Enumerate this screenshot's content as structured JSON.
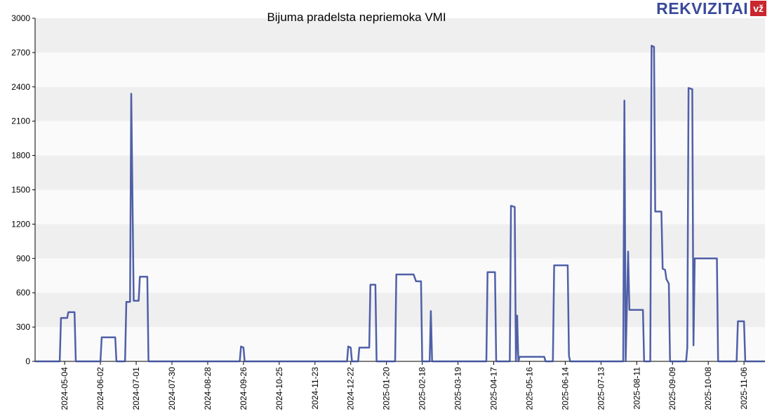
{
  "logo": {
    "text": "REKVIZITAI",
    "badge": "vž"
  },
  "chart_data": {
    "type": "line",
    "title": "Bijuma pradelsta nepriemoka VMI",
    "xlabel": "",
    "ylabel": "",
    "ylim": [
      0,
      3000
    ],
    "yticks": [
      0,
      300,
      600,
      900,
      1200,
      1500,
      1800,
      2100,
      2400,
      2700,
      3000
    ],
    "xlim": [
      "2024-04-10",
      "2025-11-23"
    ],
    "xticks": [
      "2024-05-04",
      "2024-06-02",
      "2024-07-01",
      "2024-07-30",
      "2024-08-28",
      "2024-09-26",
      "2024-10-25",
      "2024-11-23",
      "2024-12-22",
      "2025-01-20",
      "2025-02-18",
      "2025-03-19",
      "2025-04-17",
      "2025-05-16",
      "2025-06-14",
      "2025-07-13",
      "2025-08-11",
      "2025-09-09",
      "2025-10-08",
      "2025-11-06"
    ],
    "grid": "horizontal bands",
    "line_color": "#3d4f9f",
    "series": [
      {
        "points": [
          [
            "2024-04-10",
            0
          ],
          [
            "2024-04-30",
            0
          ],
          [
            "2024-05-01",
            380
          ],
          [
            "2024-05-06",
            380
          ],
          [
            "2024-05-07",
            430
          ],
          [
            "2024-05-12",
            430
          ],
          [
            "2024-05-13",
            0
          ],
          [
            "2024-06-02",
            0
          ],
          [
            "2024-06-03",
            210
          ],
          [
            "2024-06-14",
            210
          ],
          [
            "2024-06-15",
            0
          ],
          [
            "2024-06-22",
            0
          ],
          [
            "2024-06-23",
            520
          ],
          [
            "2024-06-26",
            520
          ],
          [
            "2024-06-27",
            2340
          ],
          [
            "2024-06-29",
            530
          ],
          [
            "2024-07-03",
            530
          ],
          [
            "2024-07-04",
            740
          ],
          [
            "2024-07-10",
            740
          ],
          [
            "2024-07-11",
            0
          ],
          [
            "2024-09-23",
            0
          ],
          [
            "2024-09-24",
            130
          ],
          [
            "2024-09-26",
            120
          ],
          [
            "2024-09-27",
            0
          ],
          [
            "2024-12-19",
            0
          ],
          [
            "2024-12-20",
            130
          ],
          [
            "2024-12-22",
            120
          ],
          [
            "2024-12-23",
            0
          ],
          [
            "2024-12-28",
            0
          ],
          [
            "2024-12-29",
            120
          ],
          [
            "2025-01-06",
            120
          ],
          [
            "2025-01-07",
            670
          ],
          [
            "2025-01-11",
            670
          ],
          [
            "2025-01-12",
            0
          ],
          [
            "2025-01-27",
            0
          ],
          [
            "2025-01-28",
            760
          ],
          [
            "2025-02-11",
            760
          ],
          [
            "2025-02-13",
            700
          ],
          [
            "2025-02-17",
            700
          ],
          [
            "2025-02-18",
            0
          ],
          [
            "2025-02-24",
            0
          ],
          [
            "2025-02-25",
            440
          ],
          [
            "2025-02-26",
            0
          ],
          [
            "2025-04-11",
            0
          ],
          [
            "2025-04-12",
            780
          ],
          [
            "2025-04-18",
            780
          ],
          [
            "2025-04-19",
            0
          ],
          [
            "2025-04-30",
            0
          ],
          [
            "2025-05-01",
            1360
          ],
          [
            "2025-05-04",
            1350
          ],
          [
            "2025-05-05",
            0
          ],
          [
            "2025-05-06",
            400
          ],
          [
            "2025-05-07",
            0
          ],
          [
            "2025-05-08",
            40
          ],
          [
            "2025-05-28",
            40
          ],
          [
            "2025-05-29",
            0
          ],
          [
            "2025-06-04",
            0
          ],
          [
            "2025-06-05",
            840
          ],
          [
            "2025-06-16",
            840
          ],
          [
            "2025-06-17",
            50
          ],
          [
            "2025-06-18",
            0
          ],
          [
            "2025-07-31",
            0
          ],
          [
            "2025-08-01",
            2280
          ],
          [
            "2025-08-02",
            0
          ],
          [
            "2025-08-04",
            960
          ],
          [
            "2025-08-05",
            450
          ],
          [
            "2025-08-16",
            450
          ],
          [
            "2025-08-17",
            0
          ],
          [
            "2025-08-22",
            0
          ],
          [
            "2025-08-23",
            2760
          ],
          [
            "2025-08-25",
            2750
          ],
          [
            "2025-08-26",
            1310
          ],
          [
            "2025-08-31",
            1310
          ],
          [
            "2025-09-01",
            810
          ],
          [
            "2025-09-03",
            800
          ],
          [
            "2025-09-04",
            720
          ],
          [
            "2025-09-06",
            680
          ],
          [
            "2025-09-07",
            0
          ],
          [
            "2025-09-20",
            0
          ],
          [
            "2025-09-21",
            120
          ],
          [
            "2025-09-22",
            2390
          ],
          [
            "2025-09-25",
            2380
          ],
          [
            "2025-09-26",
            140
          ],
          [
            "2025-09-27",
            900
          ],
          [
            "2025-10-15",
            900
          ],
          [
            "2025-10-16",
            0
          ],
          [
            "2025-10-31",
            0
          ],
          [
            "2025-11-01",
            350
          ],
          [
            "2025-11-06",
            350
          ],
          [
            "2025-11-07",
            0
          ],
          [
            "2025-11-23",
            0
          ]
        ]
      }
    ]
  }
}
